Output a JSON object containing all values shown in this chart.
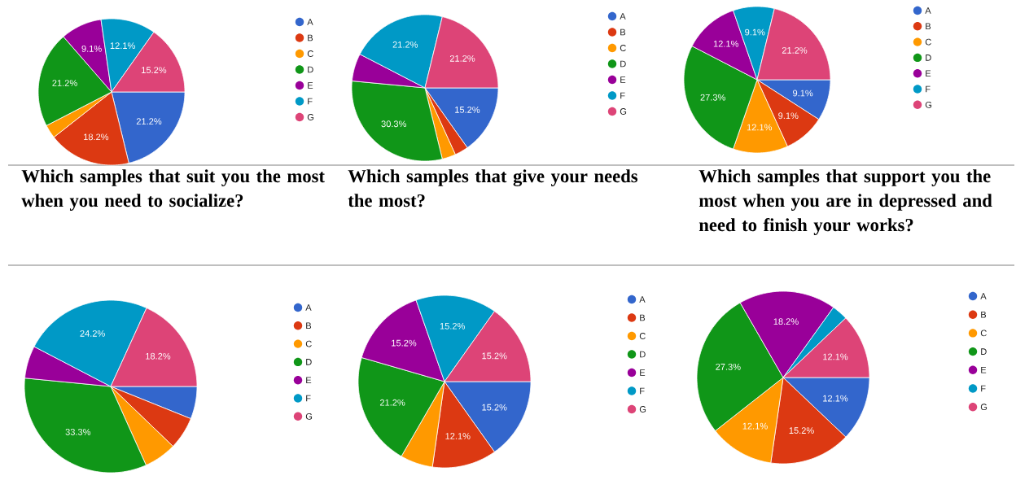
{
  "chart_data": [
    {
      "type": "pie",
      "title": "Which samples that suit you the most when you need to socialize?",
      "categories": [
        "A",
        "B",
        "C",
        "D",
        "E",
        "F",
        "G"
      ],
      "values": [
        21.2,
        18.2,
        3.0,
        21.2,
        9.1,
        12.1,
        15.2
      ],
      "colors": [
        "#3366cc",
        "#dc3912",
        "#ff9900",
        "#109618",
        "#990099",
        "#0099c6",
        "#dd4477"
      ],
      "value_labels": [
        "21.2%",
        "18.2%",
        null,
        "21.2%",
        "9.1%",
        "12.1%",
        "15.2%"
      ],
      "legend": "right"
    },
    {
      "type": "pie",
      "title": "Which samples that give your needs the most?",
      "categories": [
        "A",
        "B",
        "C",
        "D",
        "E",
        "F",
        "G"
      ],
      "values": [
        15.2,
        3.0,
        3.0,
        30.3,
        6.1,
        21.2,
        21.2
      ],
      "colors": [
        "#3366cc",
        "#dc3912",
        "#ff9900",
        "#109618",
        "#990099",
        "#0099c6",
        "#dd4477"
      ],
      "value_labels": [
        "15.2%",
        null,
        null,
        "30.3%",
        null,
        "21.2%",
        "21.2%"
      ],
      "legend": "right"
    },
    {
      "type": "pie",
      "title": "Which samples that support you the most when you are in depressed and need to finish your works?",
      "categories": [
        "A",
        "B",
        "C",
        "D",
        "E",
        "F",
        "G"
      ],
      "values": [
        9.1,
        9.1,
        12.1,
        27.3,
        12.1,
        9.1,
        21.2
      ],
      "colors": [
        "#3366cc",
        "#dc3912",
        "#ff9900",
        "#109618",
        "#990099",
        "#0099c6",
        "#dd4477"
      ],
      "value_labels": [
        "9.1%",
        "9.1%",
        "12.1%",
        "27.3%",
        "12.1%",
        "9.1%",
        "21.2%"
      ],
      "legend": "right"
    },
    {
      "type": "pie",
      "categories": [
        "A",
        "B",
        "C",
        "D",
        "E",
        "F",
        "G"
      ],
      "values": [
        6.1,
        6.1,
        6.1,
        33.3,
        6.1,
        24.2,
        18.2
      ],
      "colors": [
        "#3366cc",
        "#dc3912",
        "#ff9900",
        "#109618",
        "#990099",
        "#0099c6",
        "#dd4477"
      ],
      "value_labels": [
        null,
        null,
        null,
        "33.3%",
        null,
        "24.2%",
        "18.2%"
      ],
      "legend": "right"
    },
    {
      "type": "pie",
      "categories": [
        "A",
        "B",
        "C",
        "D",
        "E",
        "F",
        "G"
      ],
      "values": [
        15.2,
        12.1,
        6.1,
        21.2,
        15.2,
        15.2,
        15.2
      ],
      "colors": [
        "#3366cc",
        "#dc3912",
        "#ff9900",
        "#109618",
        "#990099",
        "#0099c6",
        "#dd4477"
      ],
      "value_labels": [
        "15.2%",
        "12.1%",
        null,
        "21.2%",
        "15.2%",
        "15.2%",
        "15.2%"
      ],
      "legend": "right"
    },
    {
      "type": "pie",
      "categories": [
        "A",
        "B",
        "C",
        "D",
        "E",
        "F",
        "G"
      ],
      "values": [
        12.1,
        15.2,
        12.1,
        27.3,
        18.2,
        3.0,
        12.1
      ],
      "colors": [
        "#3366cc",
        "#dc3912",
        "#ff9900",
        "#109618",
        "#990099",
        "#0099c6",
        "#dd4477"
      ],
      "value_labels": [
        "12.1%",
        "15.2%",
        "12.1%",
        "27.3%",
        "18.2%",
        null,
        "12.1%"
      ],
      "legend": "right"
    }
  ]
}
